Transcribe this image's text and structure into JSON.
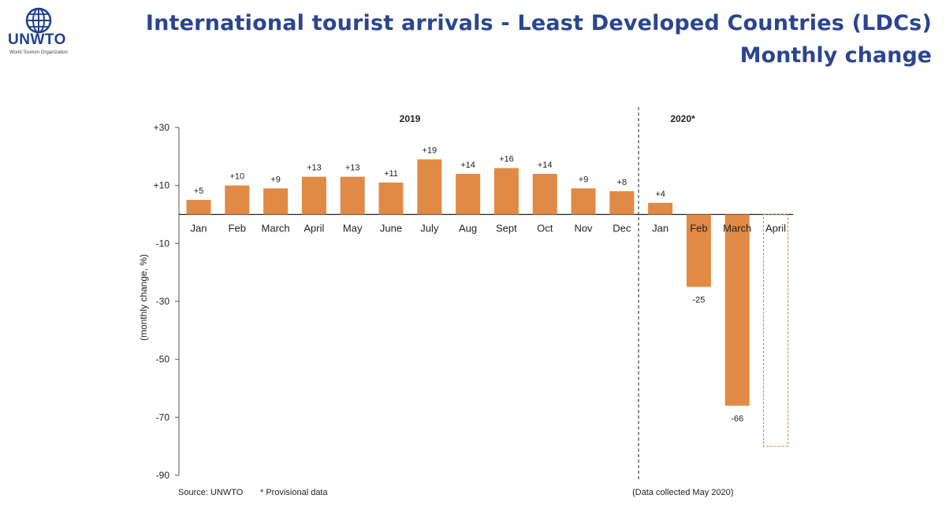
{
  "header": {
    "title_line1": "International tourist arrivals - Least Developed Countries (LDCs)",
    "title_line2": "Monthly change"
  },
  "logo": {
    "name": "UNWTO",
    "subtitle": "World Tourism Organization",
    "icon": "un-globe-logo"
  },
  "colors": {
    "bar": "#E08A45",
    "title": "#2B4590",
    "projection_border": "#E08A45"
  },
  "chart_data": {
    "type": "bar",
    "ylabel": "(monthly change, %)",
    "ylim": [
      -90,
      30
    ],
    "yticks": [
      30,
      10,
      -10,
      -30,
      -50,
      -70,
      -90
    ],
    "ytick_labels": [
      "+30",
      "+10",
      "-10",
      "-30",
      "-50",
      "-70",
      "-90"
    ],
    "groups": [
      {
        "label": "2019",
        "categories": [
          "Jan",
          "Feb",
          "March",
          "April",
          "May",
          "June",
          "July",
          "Aug",
          "Sept",
          "Oct",
          "Nov",
          "Dec"
        ],
        "values": [
          5,
          10,
          9,
          13,
          13,
          11,
          19,
          14,
          16,
          14,
          9,
          8
        ],
        "labels": [
          "+5",
          "+10",
          "+9",
          "+13",
          "+13",
          "+11",
          "+19",
          "+14",
          "+16",
          "+14",
          "+9",
          "+8"
        ]
      },
      {
        "label": "2020*",
        "categories": [
          "Jan",
          "Feb",
          "March",
          "April"
        ],
        "values": [
          4,
          -25,
          -66,
          -80
        ],
        "labels": [
          "+4",
          "-25",
          "-66",
          ""
        ],
        "style": [
          "solid",
          "solid",
          "solid",
          "dashed-outline"
        ]
      }
    ],
    "grid": false,
    "source": "Source: UNWTO",
    "footnote": "* Provisional data",
    "data_note": "(Data collected May 2020)"
  }
}
